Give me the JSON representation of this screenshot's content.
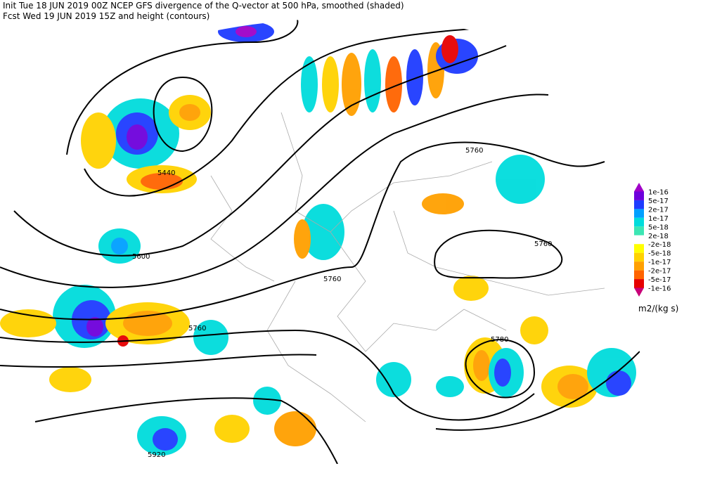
{
  "header": {
    "line1": "Init  Tue 18 JUN 2019 00Z  NCEP GFS divergence of the Q-vector at 500 hPa, smoothed (shaded)",
    "line2": "Fcst Wed 19 JUN 2019 15Z  and height (contours)"
  },
  "legend": {
    "labels": [
      "1e-16",
      "5e-17",
      "2e-17",
      "1e-17",
      "5e-18",
      "2e-18",
      "-2e-18",
      "-5e-18",
      "-1e-17",
      "-2e-17",
      "-5e-17",
      "-1e-16"
    ],
    "colors": [
      "#a000c8",
      "#6e00dc",
      "#1e3cff",
      "#00a0ff",
      "#00dcdc",
      "#3ce6b4",
      "#ffffff",
      "#ffff00",
      "#ffd200",
      "#ffa000",
      "#ff6400",
      "#e60000",
      "#c80078"
    ],
    "unit": "m2/(kg s)"
  },
  "contour_labels": [
    "5440",
    "5600",
    "5760",
    "5760",
    "5760",
    "5760",
    "5780",
    "5920"
  ]
}
